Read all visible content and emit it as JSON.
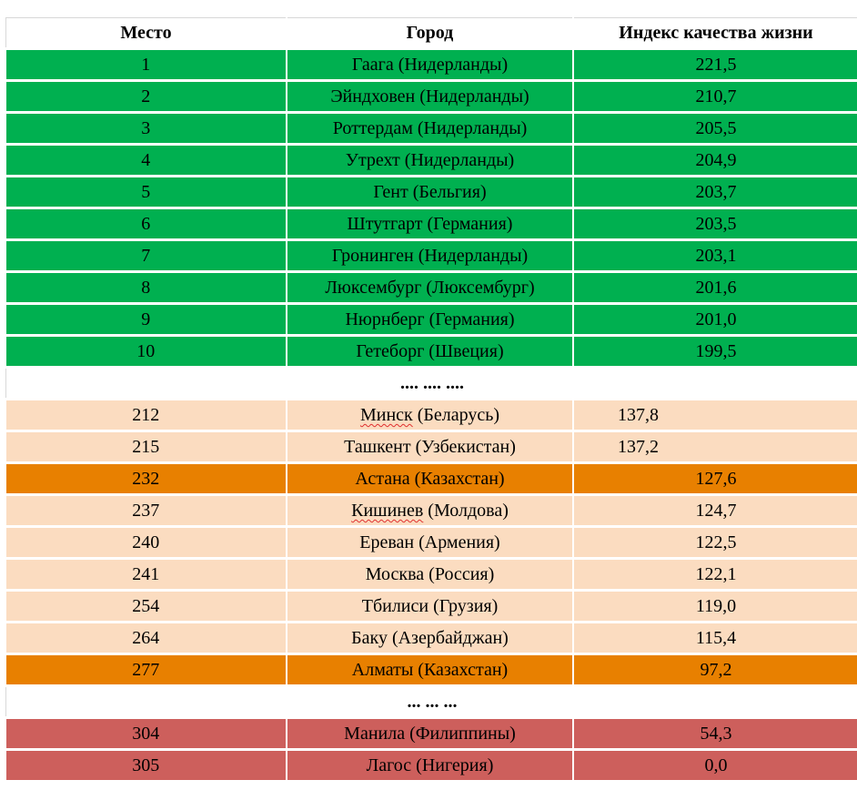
{
  "headers": [
    "Место",
    "Город",
    "Индекс качества жизни"
  ],
  "top_rows": [
    {
      "rank": "1",
      "city": "Гаага (Нидерланды)",
      "index": "221,5"
    },
    {
      "rank": "2",
      "city": "Эйндховен (Нидерланды)",
      "index": "210,7"
    },
    {
      "rank": "3",
      "city": "Роттердам (Нидерланды)",
      "index": "205,5"
    },
    {
      "rank": "4",
      "city": "Утрехт (Нидерланды)",
      "index": "204,9"
    },
    {
      "rank": "5",
      "city": "Гент (Бельгия)",
      "index": "203,7"
    },
    {
      "rank": "6",
      "city": "Штутгарт (Германия)",
      "index": "203,5"
    },
    {
      "rank": "7",
      "city": "Гронинген (Нидерланды)",
      "index": "203,1"
    },
    {
      "rank": "8",
      "city": "Люксембург (Люксембург)",
      "index": "201,6"
    },
    {
      "rank": "9",
      "city": "Нюрнберг (Германия)",
      "index": "201,0"
    },
    {
      "rank": "10",
      "city": "Гетеборг (Швеция)",
      "index": "199,5"
    }
  ],
  "gap1": ".... .... ....",
  "mid_rows": [
    {
      "rank": "212",
      "city_a": "Минск",
      "city_b": " (Беларусь)",
      "index": "137,8"
    },
    {
      "rank": "215",
      "city": "Ташкент (Узбекистан)",
      "index": "137,2"
    },
    {
      "rank": "232",
      "city": "Астана (Казахстан)",
      "index": "127,6"
    },
    {
      "rank": "237",
      "city_a": "Кишинев",
      "city_b": " (Молдова)",
      "index": "124,7"
    },
    {
      "rank": "240",
      "city": "Ереван (Армения)",
      "index": "122,5"
    },
    {
      "rank": "241",
      "city": "Москва (Россия)",
      "index": "122,1"
    },
    {
      "rank": "254",
      "city": "Тбилиси (Грузия)",
      "index": "119,0"
    },
    {
      "rank": "264",
      "city": "Баку (Азербайджан)",
      "index": "115,4"
    },
    {
      "rank": "277",
      "city": "Алматы (Казахстан)",
      "index": "97,2"
    }
  ],
  "gap2": "... ... ...",
  "bottom_rows": [
    {
      "rank": "304",
      "city": "Манила (Филиппины)",
      "index": "54,3"
    },
    {
      "rank": "305",
      "city": "Лагос (Нигерия)",
      "index": "0,0"
    }
  ],
  "colors": {
    "green": "#00b050",
    "peach": "#fbdcc0",
    "orange": "#e88000",
    "red": "#cd5f5c"
  }
}
